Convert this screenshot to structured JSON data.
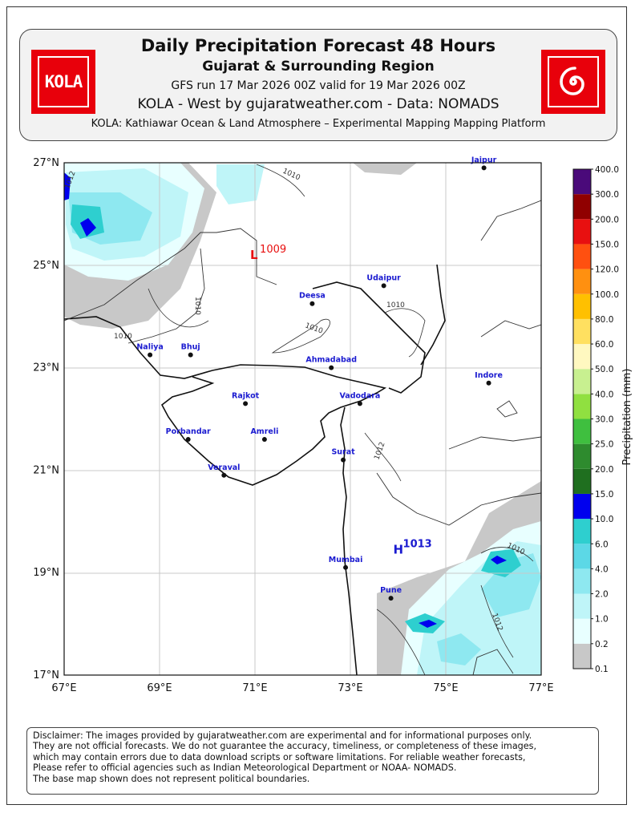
{
  "header": {
    "title": "Daily Precipitation Forecast 48 Hours",
    "subtitle": "Gujarat & Surrounding Region",
    "run_info": "GFS run 17 Mar 2026 00Z valid for 19 Mar 2026 00Z",
    "credit": "KOLA - West by gujaratweather.com - Data: NOMADS",
    "platform": "KOLA: Kathiawar Ocean & Land Atmosphere – Experimental Mapping Mapping Platform",
    "logo_left_text": "KOLA",
    "logo_right_icon": "spiral-icon"
  },
  "map": {
    "lat_ticks": [
      "27°N",
      "25°N",
      "23°N",
      "21°N",
      "19°N",
      "17°N"
    ],
    "lon_ticks": [
      "67°E",
      "69°E",
      "71°E",
      "73°E",
      "75°E",
      "77°E"
    ],
    "cities": [
      {
        "name": "Jaipur",
        "lat": 26.9,
        "lon": 75.8
      },
      {
        "name": "Udaipur",
        "lat": 24.6,
        "lon": 73.7
      },
      {
        "name": "Deesa",
        "lat": 24.25,
        "lon": 72.2
      },
      {
        "name": "Naliya",
        "lat": 23.25,
        "lon": 68.8
      },
      {
        "name": "Bhuj",
        "lat": 23.25,
        "lon": 69.65
      },
      {
        "name": "Ahmadabad",
        "lat": 23.0,
        "lon": 72.6
      },
      {
        "name": "Indore",
        "lat": 22.7,
        "lon": 75.9
      },
      {
        "name": "Rajkot",
        "lat": 22.3,
        "lon": 70.8
      },
      {
        "name": "Vadodara",
        "lat": 22.3,
        "lon": 73.2
      },
      {
        "name": "Porbandar",
        "lat": 21.6,
        "lon": 69.6
      },
      {
        "name": "Amreli",
        "lat": 21.6,
        "lon": 71.2
      },
      {
        "name": "Surat",
        "lat": 21.2,
        "lon": 72.85
      },
      {
        "name": "Veraval",
        "lat": 20.9,
        "lon": 70.35
      },
      {
        "name": "Mumbai",
        "lat": 19.1,
        "lon": 72.9
      },
      {
        "name": "Pune",
        "lat": 18.5,
        "lon": 73.85
      }
    ],
    "pressure_systems": [
      {
        "type": "L",
        "value": "1009",
        "lat": 25.25,
        "lon": 70.9
      },
      {
        "type": "H",
        "value": "1013",
        "lat": 19.5,
        "lon": 73.9
      }
    ],
    "isobar_labels": [
      "1010",
      "1012",
      "1010",
      "1010",
      "1010",
      "1012",
      "1010",
      "1012",
      "1010"
    ]
  },
  "colorbar": {
    "label": "Precipitation (mm)",
    "levels": [
      "0.1",
      "0.2",
      "1.0",
      "2.0",
      "4.0",
      "6.0",
      "10.0",
      "15.0",
      "20.0",
      "25.0",
      "30.0",
      "40.0",
      "50.0",
      "60.0",
      "80.0",
      "100.0",
      "120.0",
      "150.0",
      "200.0",
      "300.0",
      "400.0"
    ],
    "colors": [
      "#c8c8c8",
      "#e8ffff",
      "#bff5f8",
      "#8ee8f0",
      "#5cd8e6",
      "#2ecfcf",
      "#0000ee",
      "#1f6f1f",
      "#2e8b2e",
      "#3fbf3f",
      "#90e040",
      "#c8f090",
      "#fff8c0",
      "#ffe060",
      "#ffc000",
      "#ff9010",
      "#ff5010",
      "#e81010",
      "#900000",
      "#4a0a7a",
      "#d080d0",
      "#e8c8f8"
    ]
  },
  "disclaimer": {
    "line1": "Disclaimer: The images provided by gujaratweather.com are experimental and for informational purposes only.",
    "line2": "They are not official forecasts. We do not guarantee the accuracy, timeliness, or completeness of these images,",
    "line3": "which may contain errors due to data download scripts or software limitations. For reliable weather forecasts,",
    "line4": "Please refer to official agencies such as Indian Meteorological Department or NOAA- NOMADS.",
    "line5": "The base map shown does not represent political boundaries."
  }
}
